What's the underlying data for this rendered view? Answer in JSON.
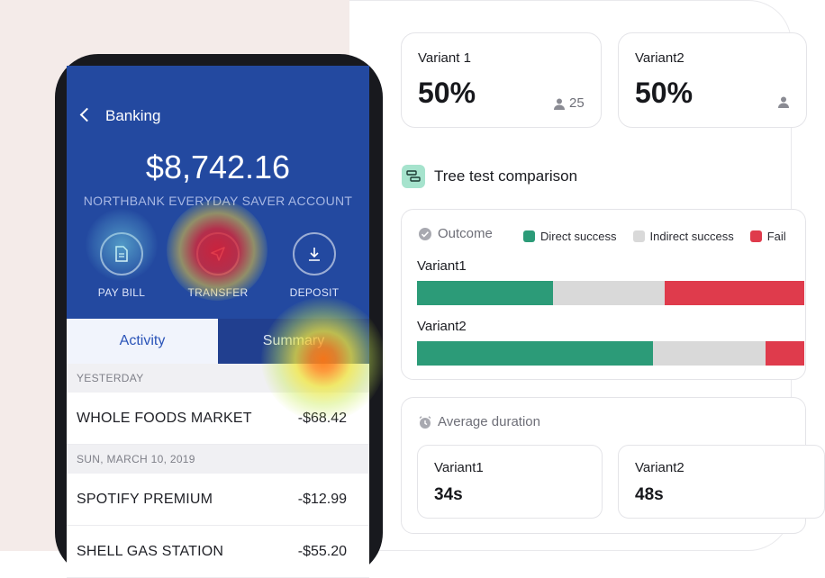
{
  "phone": {
    "nav_title": "Banking",
    "balance": "$8,742.16",
    "account_name": "NORTHBANK EVERYDAY SAVER ACCOUNT",
    "actions": [
      {
        "label": "PAY BILL",
        "icon": "document-icon"
      },
      {
        "label": "TRANSFER",
        "icon": "send-icon"
      },
      {
        "label": "DEPOSIT",
        "icon": "download-icon"
      }
    ],
    "tabs": {
      "activity": "Activity",
      "summary": "Summary"
    },
    "sections": [
      {
        "header": "YESTERDAY",
        "transactions": [
          {
            "merchant": "WHOLE FOODS MARKET",
            "amount": "-$68.42"
          }
        ]
      },
      {
        "header": "SUN, MARCH 10, 2019",
        "transactions": [
          {
            "merchant": "SPOTIFY PREMIUM",
            "amount": "-$12.99"
          },
          {
            "merchant": "SHELL GAS STATION",
            "amount": "-$55.20"
          }
        ]
      }
    ]
  },
  "variants": [
    {
      "label": "Variant 1",
      "percent": "50%",
      "count": "25"
    },
    {
      "label": "Variant2",
      "percent": "50%",
      "count": ""
    }
  ],
  "tree_test": {
    "title": "Tree test comparison",
    "outcome_label": "Outcome",
    "legend": [
      {
        "label": "Direct success",
        "color": "#2c9b78"
      },
      {
        "label": "Indirect success",
        "color": "#d9d9d9"
      },
      {
        "label": "Fail",
        "color": "#df3b4c"
      }
    ],
    "bars": [
      {
        "label": "Variant1",
        "direct": 0.35,
        "indirect": 0.29,
        "fail": 0.36
      },
      {
        "label": "Variant2",
        "direct": 0.61,
        "indirect": 0.29,
        "fail": 0.1
      }
    ]
  },
  "duration": {
    "label": "Average duration",
    "items": [
      {
        "label": "Variant1",
        "value": "34s"
      },
      {
        "label": "Variant2",
        "value": "48s"
      }
    ]
  },
  "colors": {
    "brand_blue": "#2349a0",
    "direct": "#2c9b78",
    "indirect": "#d9d9d9",
    "fail": "#df3b4c"
  }
}
